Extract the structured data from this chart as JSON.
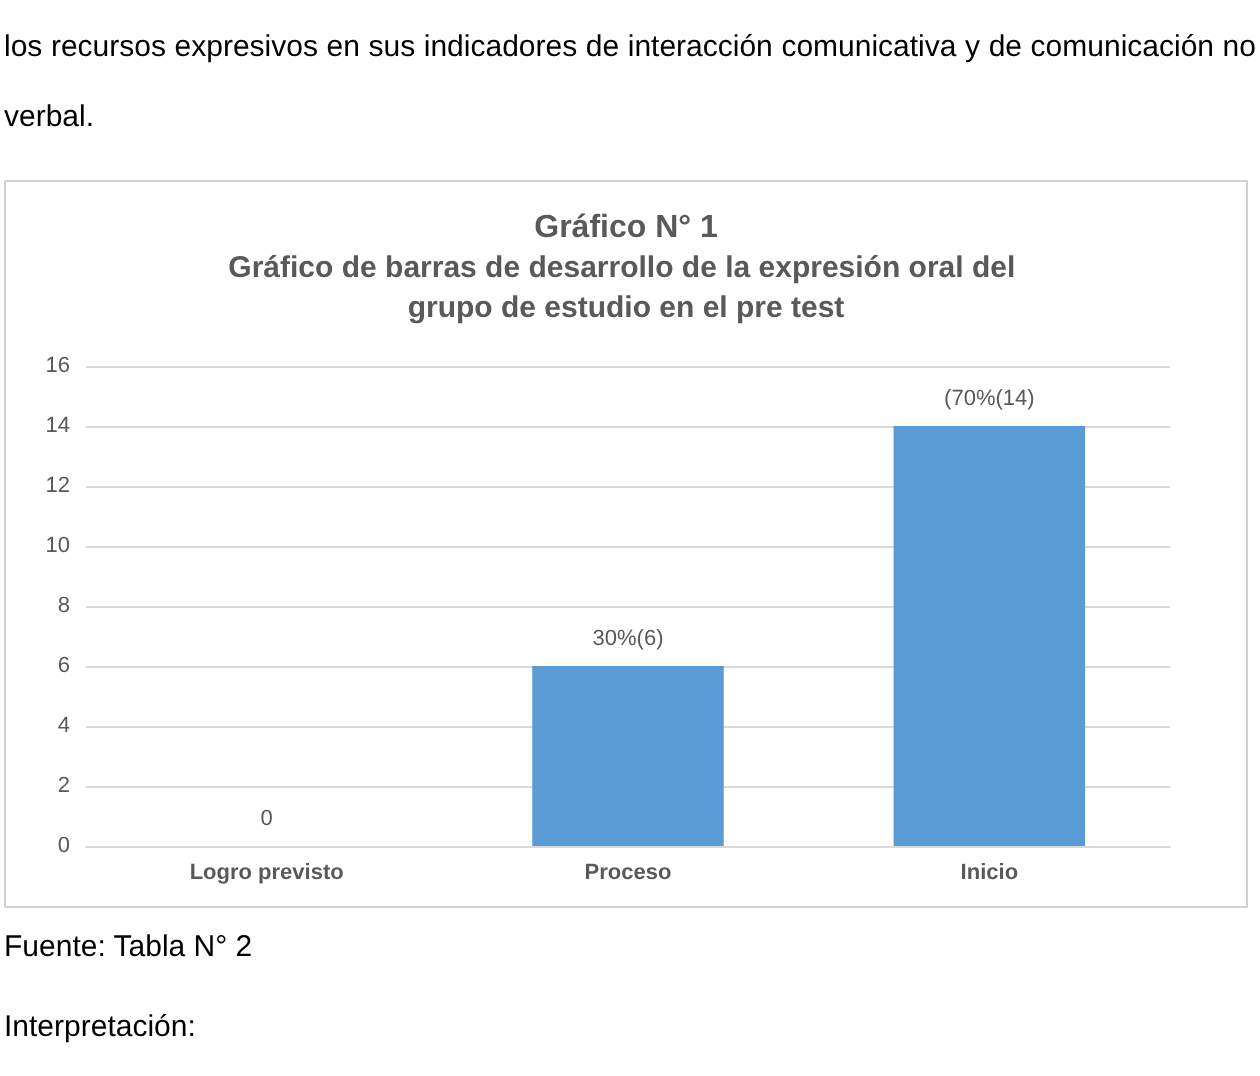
{
  "chart_data": {
    "type": "bar",
    "title": "Gráfico N° 1",
    "subtitle": "Gráfico de barras de desarrollo de la expresión oral del grupo de estudio en el pre test",
    "annotations": [
      "los recursos expresivos en sus indicadores de interacción comunicativa y de comunicación no verbal.",
      "Fuente: Tabla N° 2",
      "Interpretación:"
    ],
    "categories": [
      "Logro previsto",
      "Proceso",
      "Inicio"
    ],
    "values": [
      0,
      6,
      14
    ],
    "value_labels": [
      "0",
      "30%(6)",
      "(70%(14)"
    ],
    "color": "#5b9bd5",
    "ylim": [
      0,
      16
    ],
    "yticks": [
      0,
      2,
      4,
      6,
      8,
      10,
      12,
      14,
      16
    ],
    "grid": "y"
  }
}
